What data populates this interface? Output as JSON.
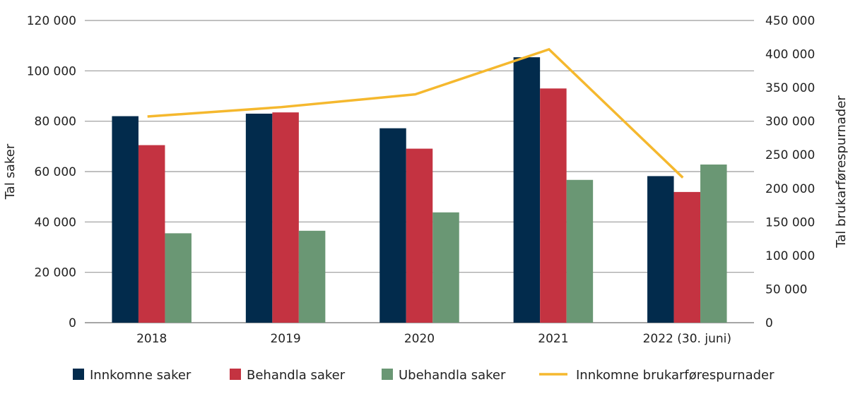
{
  "chart_data": {
    "type": "bar",
    "categories": [
      "2018",
      "2019",
      "2020",
      "2021",
      "2022 (30. juni)"
    ],
    "series": [
      {
        "name": "Innkomne saker",
        "type": "bar",
        "axis": "left",
        "color": "#022b4c",
        "values": [
          82000,
          83000,
          77200,
          105400,
          58200
        ]
      },
      {
        "name": "Behandla saker",
        "type": "bar",
        "axis": "left",
        "color": "#c43341",
        "values": [
          70500,
          83500,
          69100,
          93000,
          51900
        ]
      },
      {
        "name": "Ubehandla saker",
        "type": "bar",
        "axis": "left",
        "color": "#6a9774",
        "values": [
          35500,
          36500,
          43800,
          56700,
          62800
        ]
      },
      {
        "name": "Innkomne brukarførespurnader",
        "type": "line",
        "axis": "right",
        "color": "#f5b82e",
        "values": [
          307000,
          321000,
          340000,
          407000,
          216000
        ]
      }
    ],
    "ylabel": "Tal saker",
    "y2label": "Tal brukarførespurnader",
    "ylim": [
      0,
      120000
    ],
    "y2lim": [
      0,
      450000
    ],
    "yticks": [
      "0",
      "20 000",
      "40 000",
      "60 000",
      "80 000",
      "100 000",
      "120 000"
    ],
    "y2ticks": [
      "0",
      "50 000",
      "100 000",
      "150 000",
      "200 000",
      "250 000",
      "300 000",
      "350 000",
      "400 000",
      "450 000"
    ],
    "grid": true,
    "legend_position": "bottom"
  }
}
